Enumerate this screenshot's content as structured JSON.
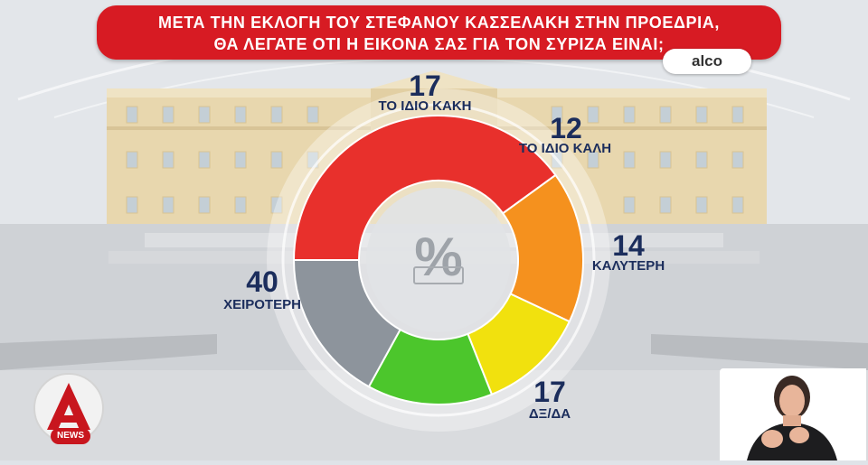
{
  "title": {
    "line1": "ΜΕΤΑ ΤΗΝ ΕΚΛΟΓΗ ΤΟΥ ΣΤΕΦΑΝΟΥ ΚΑΣΣΕΛΑΚΗ ΣΤΗΝ ΠΡΟΕΔΡΙΑ,",
    "line2": "ΘΑ ΛΕΓΑΤΕ ΟΤΙ Η ΕΙΚΟΝΑ ΣΑΣ ΓΙΑ ΤΟΝ ΣΥΡΙΖΑ ΕΙΝΑΙ;"
  },
  "source": "alco",
  "center_symbol": "%",
  "brand": {
    "logo_letter": "Α",
    "news_label": "NEWS",
    "color": "#c8161e"
  },
  "chart_data": {
    "type": "pie",
    "variant": "donut",
    "start_angle_deg": 180,
    "direction": "clockwise",
    "unit": "%",
    "slices": [
      {
        "label": "ΧΕΙΡΟΤΕΡΗ",
        "value": 40,
        "color": "#e8302c"
      },
      {
        "label": "ΤΟ ΙΔΙΟ ΚΑΚΗ",
        "value": 17,
        "color": "#f5911e"
      },
      {
        "label": "ΤΟ ΙΔΙΟ ΚΑΛΗ",
        "value": 12,
        "color": "#f1e10e"
      },
      {
        "label": "ΚΑΛΥΤΕΡΗ",
        "value": 14,
        "color": "#4cc62c"
      },
      {
        "label": "ΔΞ/ΔΑ",
        "value": 17,
        "color": "#8d949c"
      }
    ]
  }
}
